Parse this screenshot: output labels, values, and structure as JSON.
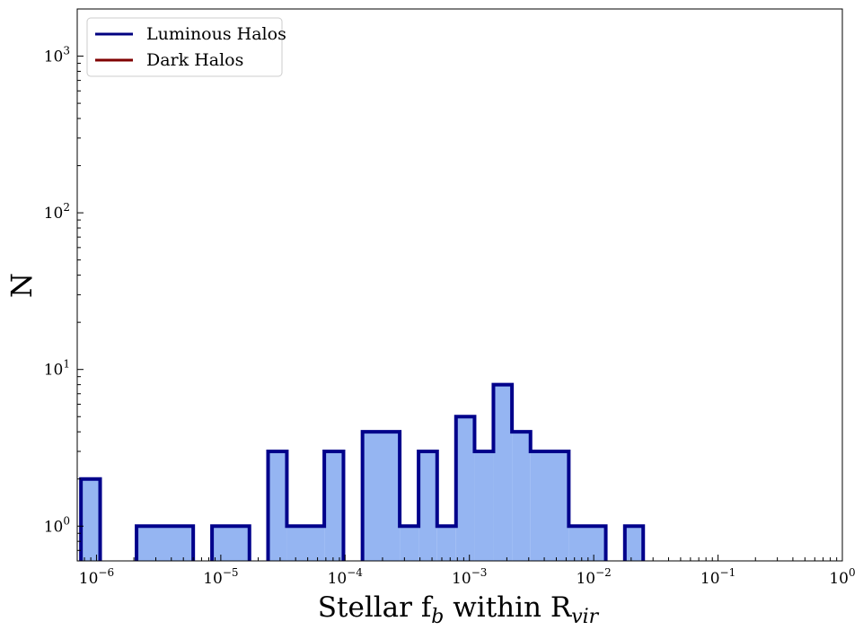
{
  "chart_data": {
    "type": "histogram",
    "xscale": "log",
    "yscale": "log",
    "xlim": [
      7e-07,
      1
    ],
    "ylim": [
      0.6,
      2000
    ],
    "xlabel_main": "Stellar f",
    "xlabel_sub1": "b",
    "xlabel_mid": " within R",
    "xlabel_sub2": "vir",
    "ylabel": "N",
    "x_ticks": [
      {
        "value": 1e-06,
        "base": "10",
        "exp": "−6"
      },
      {
        "value": 1e-05,
        "base": "10",
        "exp": "−5"
      },
      {
        "value": 0.0001,
        "base": "10",
        "exp": "−4"
      },
      {
        "value": 0.001,
        "base": "10",
        "exp": "−3"
      },
      {
        "value": 0.01,
        "base": "10",
        "exp": "−2"
      },
      {
        "value": 0.1,
        "base": "10",
        "exp": "−1"
      },
      {
        "value": 1,
        "base": "10",
        "exp": "0"
      }
    ],
    "y_ticks": [
      {
        "value": 1,
        "base": "10",
        "exp": "0"
      },
      {
        "value": 10,
        "base": "10",
        "exp": "1"
      },
      {
        "value": 100,
        "base": "10",
        "exp": "2"
      },
      {
        "value": 1000,
        "base": "10",
        "exp": "3"
      }
    ],
    "legend": {
      "placement": "top-left",
      "entries": [
        {
          "label": "Luminous Halos",
          "color": "#000080"
        },
        {
          "label": "Dark Halos",
          "color": "#800000"
        }
      ]
    },
    "series": [
      {
        "name": "Luminous Halos",
        "edge_color": "#00008b",
        "fill_color": "#95b5f2",
        "bins": [
          {
            "x0": 7.5e-07,
            "x1": 1.07e-06,
            "count": 2
          },
          {
            "x0": 2.1e-06,
            "x1": 6e-06,
            "count": 1
          },
          {
            "x0": 8.5e-06,
            "x1": 1.7e-05,
            "count": 1
          },
          {
            "x0": 2.4e-05,
            "x1": 3.4e-05,
            "count": 3
          },
          {
            "x0": 3.4e-05,
            "x1": 6.8e-05,
            "count": 1
          },
          {
            "x0": 6.8e-05,
            "x1": 9.7e-05,
            "count": 3
          },
          {
            "x0": 0.000138,
            "x1": 0.000275,
            "count": 4
          },
          {
            "x0": 0.000275,
            "x1": 0.00039,
            "count": 1
          },
          {
            "x0": 0.00039,
            "x1": 0.00055,
            "count": 3
          },
          {
            "x0": 0.00055,
            "x1": 0.00078,
            "count": 1
          },
          {
            "x0": 0.00078,
            "x1": 0.0011,
            "count": 5
          },
          {
            "x0": 0.0011,
            "x1": 0.00156,
            "count": 3
          },
          {
            "x0": 0.00156,
            "x1": 0.0022,
            "count": 8
          },
          {
            "x0": 0.0022,
            "x1": 0.0031,
            "count": 4
          },
          {
            "x0": 0.0031,
            "x1": 0.0063,
            "count": 3
          },
          {
            "x0": 0.0063,
            "x1": 0.0125,
            "count": 1
          },
          {
            "x0": 0.0178,
            "x1": 0.025,
            "count": 1
          }
        ]
      }
    ]
  }
}
